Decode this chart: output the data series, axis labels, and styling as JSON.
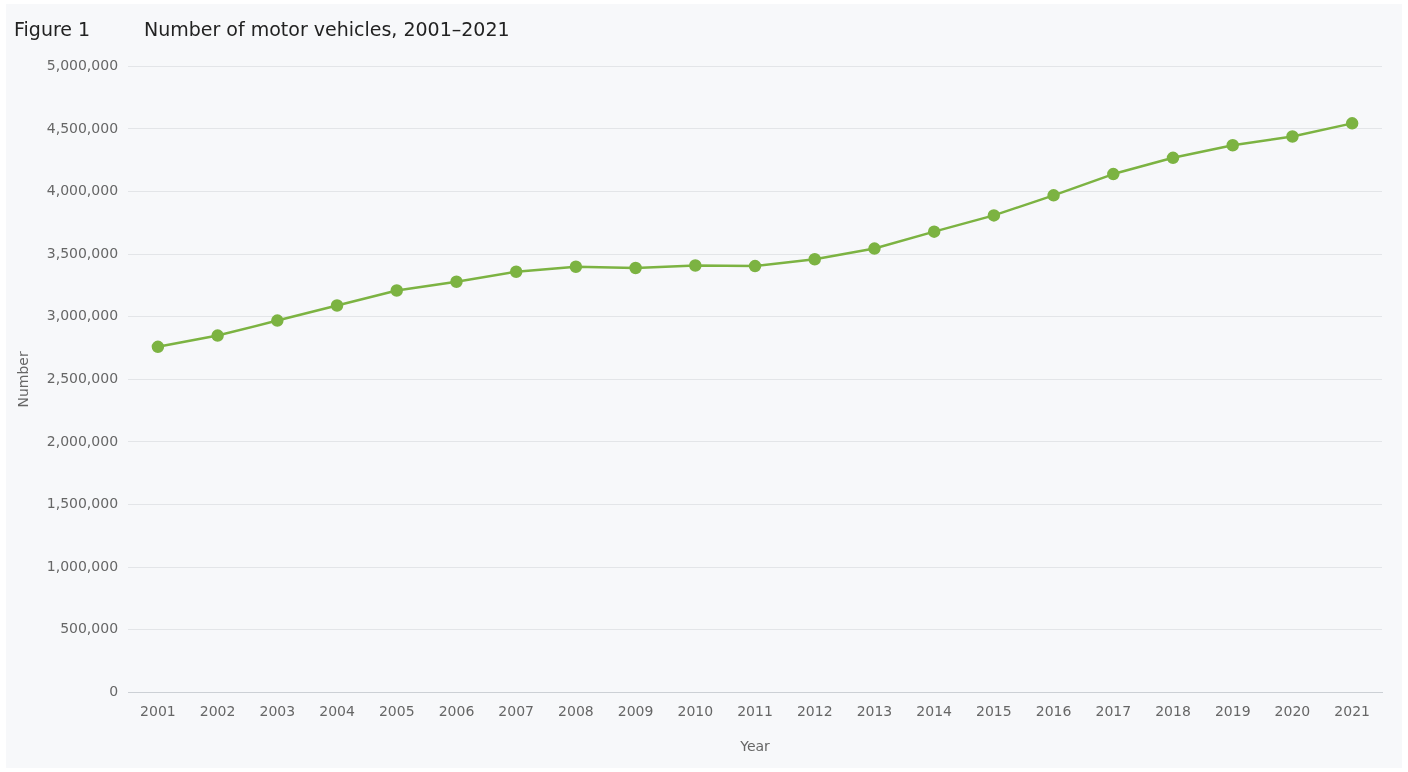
{
  "chart_data": {
    "type": "line",
    "title": "Figure 1",
    "subtitle": "Number of motor vehicles, 2001–2021",
    "xlabel": "Year",
    "ylabel": "Number",
    "categories": [
      "2001",
      "2002",
      "2003",
      "2004",
      "2005",
      "2006",
      "2007",
      "2008",
      "2009",
      "2010",
      "2011",
      "2012",
      "2013",
      "2014",
      "2015",
      "2016",
      "2017",
      "2018",
      "2019",
      "2020",
      "2021"
    ],
    "series": [
      {
        "color": "#7cb342",
        "values": [
          2760000,
          2850000,
          2970000,
          3090000,
          3210000,
          3280000,
          3360000,
          3400000,
          3390000,
          3410000,
          3405000,
          3460000,
          3545000,
          3680000,
          3810000,
          3970000,
          4140000,
          4270000,
          4370000,
          4440000,
          4545000
        ]
      }
    ],
    "ylim": [
      0,
      5000000
    ],
    "yticks": [
      {
        "value": 0,
        "label": "0"
      },
      {
        "value": 500000,
        "label": "500,000"
      },
      {
        "value": 1000000,
        "label": "1,000,000"
      },
      {
        "value": 1500000,
        "label": "1,500,000"
      },
      {
        "value": 2000000,
        "label": "2,000,000"
      },
      {
        "value": 2500000,
        "label": "2,500,000"
      },
      {
        "value": 3000000,
        "label": "3,000,000"
      },
      {
        "value": 3500000,
        "label": "3,500,000"
      },
      {
        "value": 4000000,
        "label": "4,000,000"
      },
      {
        "value": 4500000,
        "label": "4,500,000"
      },
      {
        "value": 5000000,
        "label": "5,000,000"
      }
    ],
    "grid": "y",
    "marker": "circle",
    "line_style": "solid",
    "legend": false
  }
}
